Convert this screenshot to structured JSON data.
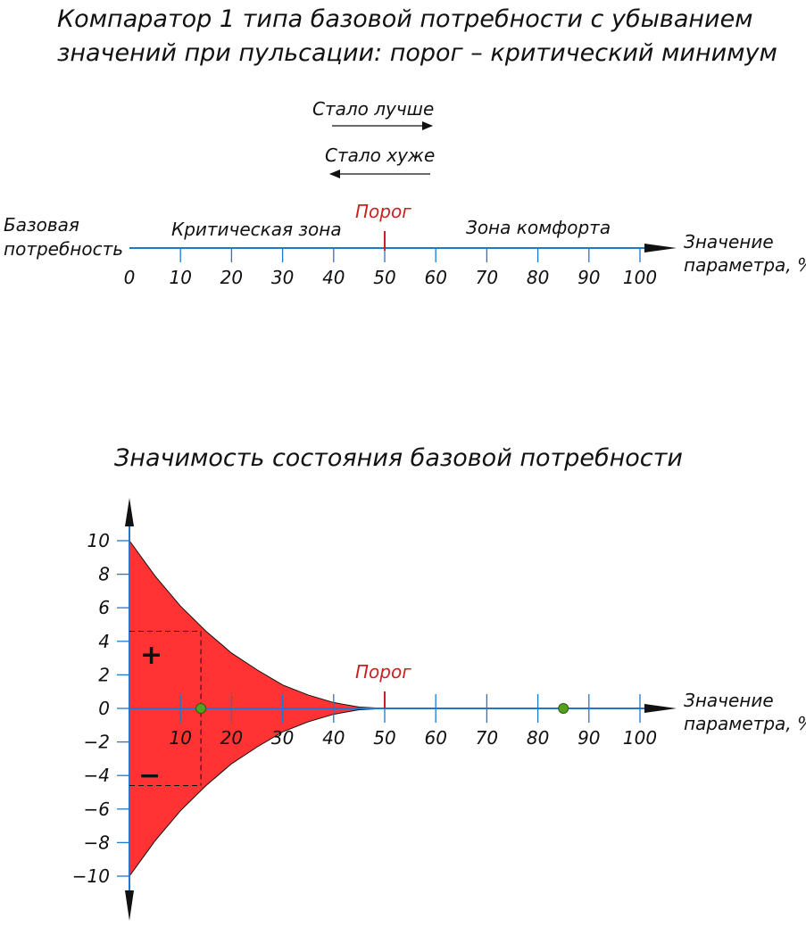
{
  "header": {
    "title_line1": "Компаратор 1 типа базовой потребности с убыванием",
    "title_line2": "значений при пульсации: порог – критический минимум"
  },
  "direction": {
    "better": "Стало лучше",
    "worse": "Стало хуже"
  },
  "scale": {
    "left_label_line1": "Базовая",
    "left_label_line2": "потребность",
    "critical_zone": "Критическая зона",
    "comfort_zone": "Зона комфорта",
    "threshold": "Порог",
    "axis_label_line1": "Значение",
    "axis_label_line2": "параметра, %",
    "ticks": [
      "0",
      "10",
      "20",
      "30",
      "40",
      "50",
      "60",
      "70",
      "80",
      "90",
      "100"
    ],
    "threshold_value": 50
  },
  "chart_title": "Значимость состояния базовой потребности",
  "chart_data": {
    "type": "area",
    "title": "Значимость состояния базовой потребности",
    "xlabel": "Значение параметра, %",
    "ylabel": "",
    "xlim": [
      0,
      100
    ],
    "ylim": [
      -10,
      10
    ],
    "x_ticks": [
      "10",
      "20",
      "30",
      "40",
      "50",
      "60",
      "70",
      "80",
      "90",
      "100"
    ],
    "y_ticks": [
      "10",
      "8",
      "6",
      "4",
      "2",
      "0",
      "−2",
      "−4",
      "−6",
      "−8",
      "−10"
    ],
    "threshold": 50,
    "threshold_label": "Порог",
    "series": [
      {
        "values": [
          {
            "x": 0,
            "y": 10
          },
          {
            "x": 5,
            "y": 7.9
          },
          {
            "x": 10,
            "y": 6.1
          },
          {
            "x": 15,
            "y": 4.6
          },
          {
            "x": 20,
            "y": 3.3
          },
          {
            "x": 25,
            "y": 2.3
          },
          {
            "x": 30,
            "y": 1.4
          },
          {
            "x": 35,
            "y": 0.8
          },
          {
            "x": 40,
            "y": 0.35
          },
          {
            "x": 45,
            "y": 0.08
          },
          {
            "x": 50,
            "y": 0
          }
        ]
      },
      {
        "values": [
          {
            "x": 0,
            "y": -10
          },
          {
            "x": 5,
            "y": -7.9
          },
          {
            "x": 10,
            "y": -6.1
          },
          {
            "x": 15,
            "y": -4.6
          },
          {
            "x": 20,
            "y": -3.3
          },
          {
            "x": 25,
            "y": -2.3
          },
          {
            "x": 30,
            "y": -1.4
          },
          {
            "x": 35,
            "y": -0.8
          },
          {
            "x": 40,
            "y": -0.35
          },
          {
            "x": 45,
            "y": -0.08
          },
          {
            "x": 50,
            "y": 0
          }
        ]
      }
    ],
    "points": [
      {
        "x": 14,
        "y": 0
      },
      {
        "x": 85,
        "y": 0
      }
    ],
    "guide_x": 14,
    "guide_y": 4.6,
    "plus_label": "+",
    "minus_label": "−",
    "fill_color": "#ff3333",
    "axis_color": "#1f77d0",
    "point_color": "#55a020",
    "threshold_color": "#cc1f1f"
  }
}
